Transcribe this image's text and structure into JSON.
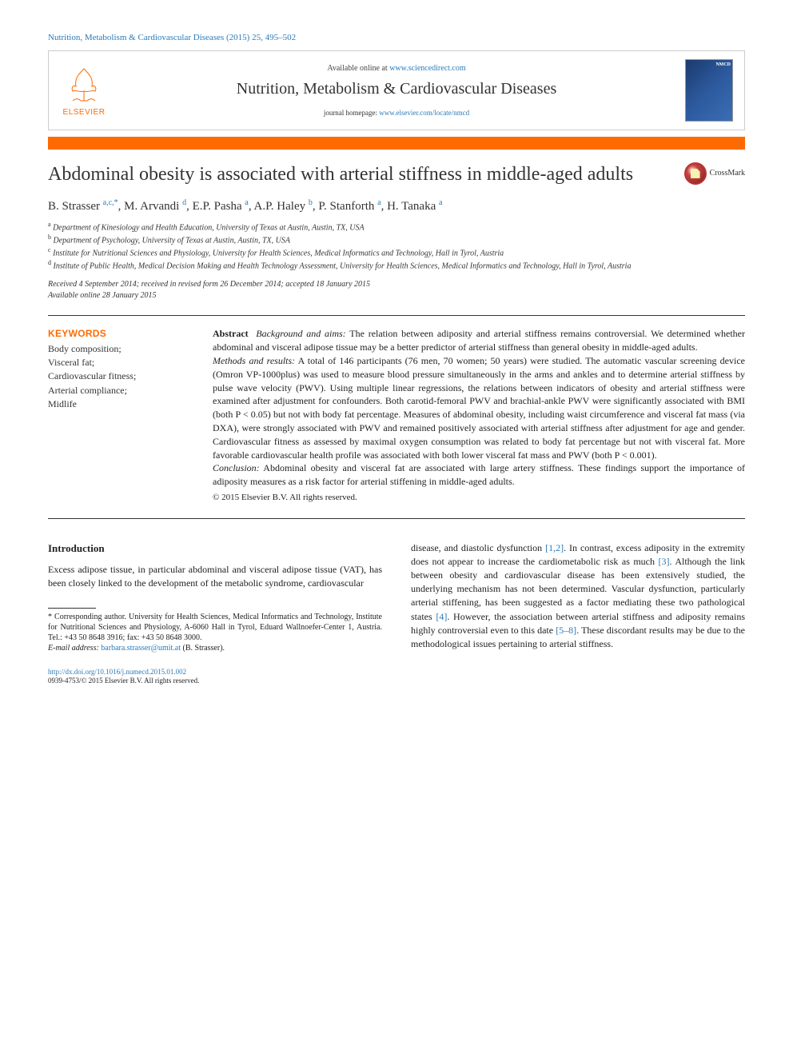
{
  "header": {
    "journal_ref": "Nutrition, Metabolism & Cardiovascular Diseases (2015) 25, 495–502",
    "page_marker": ""
  },
  "banner": {
    "publisher": "ELSEVIER",
    "available_prefix": "Available online at ",
    "available_link": "www.sciencedirect.com",
    "journal_title": "Nutrition, Metabolism & Cardiovascular Diseases",
    "homepage_prefix": "journal homepage: ",
    "homepage_link": "www.elsevier.com/locate/nmcd",
    "cover_label": "NMCD"
  },
  "crossmark": {
    "label": "CrossMark"
  },
  "article": {
    "title": "Abdominal obesity is associated with arterial stiffness in middle-aged adults",
    "authors_html": "B. Strasser <sup>a,c,*</sup>, M. Arvandi <sup>d</sup>, E.P. Pasha <sup>a</sup>, A.P. Haley <sup>b</sup>, P. Stanforth <sup>a</sup>, H. Tanaka <sup>a</sup>",
    "affiliations": [
      {
        "sup": "a",
        "text": "Department of Kinesiology and Health Education, University of Texas at Austin, Austin, TX, USA"
      },
      {
        "sup": "b",
        "text": "Department of Psychology, University of Texas at Austin, Austin, TX, USA"
      },
      {
        "sup": "c",
        "text": "Institute for Nutritional Sciences and Physiology, University for Health Sciences, Medical Informatics and Technology, Hall in Tyrol, Austria"
      },
      {
        "sup": "d",
        "text": "Institute of Public Health, Medical Decision Making and Health Technology Assessment, University for Health Sciences, Medical Informatics and Technology, Hall in Tyrol, Austria"
      }
    ],
    "dates": "Received 4 September 2014; received in revised form 26 December 2014; accepted 18 January 2015\nAvailable online 28 January 2015"
  },
  "keywords": {
    "head": "KEYWORDS",
    "items": "Body composition;\nVisceral fat;\nCardiovascular fitness;\nArterial compliance;\nMidlife"
  },
  "abstract": {
    "label": "Abstract",
    "sections": {
      "background_label": "Background and aims:",
      "background": " The relation between adiposity and arterial stiffness remains controversial. We determined whether abdominal and visceral adipose tissue may be a better predictor of arterial stiffness than general obesity in middle-aged adults.",
      "methods_label": "Methods and results:",
      "methods": " A total of 146 participants (76 men, 70 women; 50 years) were studied. The automatic vascular screening device (Omron VP-1000plus) was used to measure blood pressure simultaneously in the arms and ankles and to determine arterial stiffness by pulse wave velocity (PWV). Using multiple linear regressions, the relations between indicators of obesity and arterial stiffness were examined after adjustment for confounders. Both carotid-femoral PWV and brachial-ankle PWV were significantly associated with BMI (both P < 0.05) but not with body fat percentage. Measures of abdominal obesity, including waist circumference and visceral fat mass (via DXA), were strongly associated with PWV and remained positively associated with arterial stiffness after adjustment for age and gender. Cardiovascular fitness as assessed by maximal oxygen consumption was related to body fat percentage but not with visceral fat. More favorable cardiovascular health profile was associated with both lower visceral fat mass and PWV (both P < 0.001).",
      "conclusion_label": "Conclusion:",
      "conclusion": " Abdominal obesity and visceral fat are associated with large artery stiffness. These findings support the importance of adiposity measures as a risk factor for arterial stiffening in middle-aged adults."
    },
    "copyright": "© 2015 Elsevier B.V. All rights reserved."
  },
  "intro": {
    "head": "Introduction",
    "col1_p1": "Excess adipose tissue, in particular abdominal and visceral adipose tissue (VAT), has been closely linked to the development of the metabolic syndrome, cardiovascular",
    "col2_p1_a": "disease, and diastolic dysfunction ",
    "col2_p1_b": ". In contrast, excess adiposity in the extremity does not appear to increase the cardiometabolic risk as much ",
    "col2_p1_c": ". Although the link between obesity and cardiovascular disease has been extensively studied, the underlying mechanism has not been determined. Vascular dysfunction, particularly arterial stiffening, has been suggested as a factor mediating these two pathological states ",
    "col2_p1_d": ". However, the association between arterial stiffness and adiposity remains highly controversial even to this date ",
    "col2_p1_e": ". These discordant results may be due to the methodological issues pertaining to arterial stiffness.",
    "cite1": "[1,2]",
    "cite2": "[3]",
    "cite3": "[4]",
    "cite4": "[5–8]"
  },
  "footnote": {
    "corr": "* Corresponding author. University for Health Sciences, Medical Informatics and Technology, Institute for Nutritional Sciences and Physiology, A-6060 Hall in Tyrol, Eduard Wallnoefer-Center 1, Austria. Tel.: +43 50 8648 3916; fax: +43 50 8648 3000.",
    "email_label": "E-mail address: ",
    "email": "barbara.strasser@umit.at",
    "email_suffix": " (B. Strasser)."
  },
  "footer": {
    "doi": "http://dx.doi.org/10.1016/j.numecd.2015.01.002",
    "issn_copy": "0939-4753/© 2015 Elsevier B.V. All rights reserved."
  },
  "colors": {
    "accent_orange": "#ff6a00",
    "link_blue": "#2b7bb9",
    "text": "#222222",
    "rule": "#333333"
  }
}
